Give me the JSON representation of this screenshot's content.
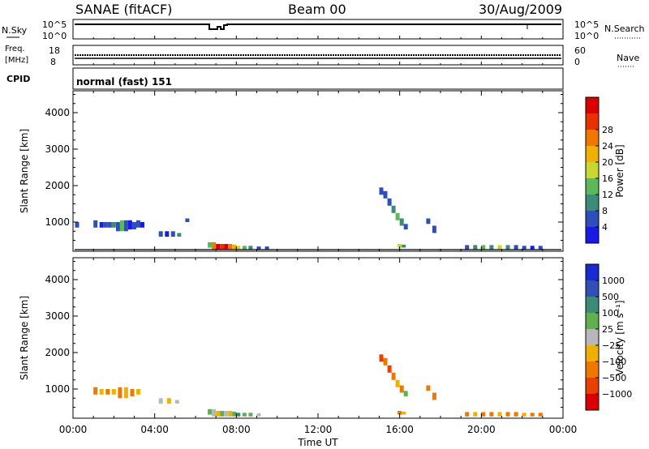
{
  "header": {
    "station": "SANAE (fitACF)",
    "beam": "Beam 00",
    "date": "30/Aug/2009"
  },
  "strips": {
    "nsky_label": "N.Sky",
    "nsky_ticks": [
      "10^5",
      "10^0"
    ],
    "nsearch_label": "N.Search",
    "nsearch_ticks": [
      "10^5",
      "10^0"
    ],
    "freq_label_1": "Freq.",
    "freq_label_2": "[MHz]",
    "freq_ticks": [
      "18",
      "8"
    ],
    "nave_label": "Nave",
    "nave_ticks": [
      "60",
      "0"
    ],
    "cpid_label": "CPID",
    "cpid_text": "normal (fast) 151"
  },
  "chart_data": [
    {
      "type": "heatmap",
      "name": "power",
      "ylabel": "Slant Range [km]",
      "xlabel": "",
      "yticks": [
        1000,
        2000,
        3000,
        4000
      ],
      "ylim": [
        200,
        4600
      ],
      "xlim": [
        0,
        24
      ],
      "colorbar": {
        "label": "Power [dB]",
        "ticks": [
          "4",
          "8",
          "12",
          "16",
          "20",
          "24",
          "28"
        ],
        "colors": [
          "#1a1ae6",
          "#2f4fb8",
          "#3e8a78",
          "#5cb858",
          "#c8d830",
          "#f0b000",
          "#f07800",
          "#e83000",
          "#d80000"
        ]
      },
      "cells": [
        {
          "t": 0.1,
          "r0": 850,
          "r1": 1000,
          "c": 1
        },
        {
          "t": 1.0,
          "r0": 850,
          "r1": 1050,
          "c": 1
        },
        {
          "t": 1.3,
          "r0": 850,
          "r1": 1000,
          "c": 0
        },
        {
          "t": 1.5,
          "r0": 850,
          "r1": 1000,
          "c": 1
        },
        {
          "t": 1.7,
          "r0": 850,
          "r1": 1000,
          "c": 1
        },
        {
          "t": 1.9,
          "r0": 850,
          "r1": 1000,
          "c": 2
        },
        {
          "t": 2.1,
          "r0": 750,
          "r1": 1000,
          "c": 1
        },
        {
          "t": 2.3,
          "r0": 750,
          "r1": 1050,
          "c": 3
        },
        {
          "t": 2.5,
          "r0": 750,
          "r1": 1050,
          "c": 1
        },
        {
          "t": 2.7,
          "r0": 800,
          "r1": 1050,
          "c": 0
        },
        {
          "t": 2.9,
          "r0": 800,
          "r1": 1000,
          "c": 1
        },
        {
          "t": 3.1,
          "r0": 850,
          "r1": 1050,
          "c": 1
        },
        {
          "t": 3.3,
          "r0": 850,
          "r1": 1000,
          "c": 0
        },
        {
          "t": 4.2,
          "r0": 600,
          "r1": 750,
          "c": 1
        },
        {
          "t": 4.5,
          "r0": 600,
          "r1": 750,
          "c": 0
        },
        {
          "t": 4.8,
          "r0": 600,
          "r1": 750,
          "c": 1
        },
        {
          "t": 5.1,
          "r0": 600,
          "r1": 700,
          "c": 2
        },
        {
          "t": 5.5,
          "r0": 1000,
          "r1": 1100,
          "c": 1
        },
        {
          "t": 6.6,
          "r0": 300,
          "r1": 450,
          "c": 3
        },
        {
          "t": 6.8,
          "r0": 250,
          "r1": 450,
          "c": 6
        },
        {
          "t": 7.0,
          "r0": 250,
          "r1": 400,
          "c": 8
        },
        {
          "t": 7.2,
          "r0": 250,
          "r1": 400,
          "c": 7
        },
        {
          "t": 7.4,
          "r0": 250,
          "r1": 400,
          "c": 8
        },
        {
          "t": 7.6,
          "r0": 250,
          "r1": 400,
          "c": 6
        },
        {
          "t": 7.8,
          "r0": 250,
          "r1": 380,
          "c": 5
        },
        {
          "t": 8.0,
          "r0": 250,
          "r1": 350,
          "c": 4
        },
        {
          "t": 8.3,
          "r0": 250,
          "r1": 350,
          "c": 3
        },
        {
          "t": 8.6,
          "r0": 250,
          "r1": 350,
          "c": 2
        },
        {
          "t": 9.0,
          "r0": 250,
          "r1": 330,
          "c": 1
        },
        {
          "t": 9.4,
          "r0": 250,
          "r1": 330,
          "c": 1
        },
        {
          "t": 15.0,
          "r0": 1750,
          "r1": 1950,
          "c": 1
        },
        {
          "t": 15.2,
          "r0": 1650,
          "r1": 1850,
          "c": 1
        },
        {
          "t": 15.4,
          "r0": 1450,
          "r1": 1650,
          "c": 1
        },
        {
          "t": 15.6,
          "r0": 1250,
          "r1": 1450,
          "c": 2
        },
        {
          "t": 15.8,
          "r0": 1050,
          "r1": 1250,
          "c": 3
        },
        {
          "t": 16.0,
          "r0": 900,
          "r1": 1100,
          "c": 2
        },
        {
          "t": 16.2,
          "r0": 800,
          "r1": 950,
          "c": 1
        },
        {
          "t": 15.9,
          "r0": 300,
          "r1": 400,
          "c": 4
        },
        {
          "t": 16.1,
          "r0": 300,
          "r1": 380,
          "c": 2
        },
        {
          "t": 17.3,
          "r0": 950,
          "r1": 1100,
          "c": 1
        },
        {
          "t": 17.6,
          "r0": 700,
          "r1": 900,
          "c": 1
        },
        {
          "t": 19.2,
          "r0": 250,
          "r1": 370,
          "c": 1
        },
        {
          "t": 19.6,
          "r0": 250,
          "r1": 370,
          "c": 2
        },
        {
          "t": 20.0,
          "r0": 250,
          "r1": 370,
          "c": 3
        },
        {
          "t": 20.4,
          "r0": 250,
          "r1": 370,
          "c": 2
        },
        {
          "t": 20.8,
          "r0": 250,
          "r1": 370,
          "c": 4
        },
        {
          "t": 21.2,
          "r0": 250,
          "r1": 370,
          "c": 2
        },
        {
          "t": 21.6,
          "r0": 250,
          "r1": 370,
          "c": 1
        },
        {
          "t": 22.0,
          "r0": 250,
          "r1": 350,
          "c": 1
        },
        {
          "t": 22.4,
          "r0": 250,
          "r1": 350,
          "c": 0
        },
        {
          "t": 22.8,
          "r0": 250,
          "r1": 350,
          "c": 1
        }
      ]
    },
    {
      "type": "heatmap",
      "name": "velocity",
      "ylabel": "Slant Range [km]",
      "xlabel": "Time UT",
      "yticks": [
        1000,
        2000,
        3000,
        4000
      ],
      "ylim": [
        200,
        4600
      ],
      "xlim": [
        0,
        24
      ],
      "xticks": [
        "00:00",
        "04:00",
        "08:00",
        "12:00",
        "16:00",
        "20:00",
        "00:00"
      ],
      "colorbar": {
        "label": "Velocity [m s⁻¹]",
        "ticks": [
          "1000",
          "500",
          "100",
          "25",
          "−25",
          "−100",
          "−500",
          "−1000"
        ],
        "colors": [
          "#1a2ad0",
          "#3050b8",
          "#3e8a78",
          "#60b050",
          "#b8b8b8",
          "#f0b000",
          "#f07800",
          "#e84000",
          "#d80000"
        ]
      },
      "cells": [
        {
          "t": 1.0,
          "r0": 850,
          "r1": 1050,
          "c": 6
        },
        {
          "t": 1.3,
          "r0": 850,
          "r1": 1000,
          "c": 5
        },
        {
          "t": 1.6,
          "r0": 850,
          "r1": 1000,
          "c": 6
        },
        {
          "t": 1.9,
          "r0": 850,
          "r1": 1000,
          "c": 5
        },
        {
          "t": 2.2,
          "r0": 750,
          "r1": 1050,
          "c": 6
        },
        {
          "t": 2.5,
          "r0": 750,
          "r1": 1050,
          "c": 5
        },
        {
          "t": 2.8,
          "r0": 800,
          "r1": 1000,
          "c": 6
        },
        {
          "t": 3.1,
          "r0": 850,
          "r1": 1000,
          "c": 5
        },
        {
          "t": 4.2,
          "r0": 600,
          "r1": 750,
          "c": 4
        },
        {
          "t": 4.6,
          "r0": 600,
          "r1": 750,
          "c": 5
        },
        {
          "t": 5.0,
          "r0": 600,
          "r1": 700,
          "c": 4
        },
        {
          "t": 6.6,
          "r0": 300,
          "r1": 450,
          "c": 3
        },
        {
          "t": 6.8,
          "r0": 250,
          "r1": 450,
          "c": 4
        },
        {
          "t": 7.0,
          "r0": 250,
          "r1": 400,
          "c": 5
        },
        {
          "t": 7.2,
          "r0": 250,
          "r1": 400,
          "c": 3
        },
        {
          "t": 7.4,
          "r0": 250,
          "r1": 400,
          "c": 4
        },
        {
          "t": 7.6,
          "r0": 250,
          "r1": 400,
          "c": 5
        },
        {
          "t": 7.8,
          "r0": 250,
          "r1": 380,
          "c": 3
        },
        {
          "t": 8.0,
          "r0": 250,
          "r1": 350,
          "c": 2
        },
        {
          "t": 8.3,
          "r0": 250,
          "r1": 350,
          "c": 3
        },
        {
          "t": 8.6,
          "r0": 250,
          "r1": 350,
          "c": 3
        },
        {
          "t": 9.0,
          "r0": 250,
          "r1": 330,
          "c": 4
        },
        {
          "t": 15.0,
          "r0": 1750,
          "r1": 1950,
          "c": 7
        },
        {
          "t": 15.2,
          "r0": 1650,
          "r1": 1850,
          "c": 6
        },
        {
          "t": 15.4,
          "r0": 1450,
          "r1": 1650,
          "c": 7
        },
        {
          "t": 15.6,
          "r0": 1250,
          "r1": 1450,
          "c": 6
        },
        {
          "t": 15.8,
          "r0": 1050,
          "r1": 1250,
          "c": 5
        },
        {
          "t": 16.0,
          "r0": 900,
          "r1": 1100,
          "c": 6
        },
        {
          "t": 16.2,
          "r0": 800,
          "r1": 950,
          "c": 3
        },
        {
          "t": 15.9,
          "r0": 300,
          "r1": 400,
          "c": 6
        },
        {
          "t": 16.1,
          "r0": 300,
          "r1": 380,
          "c": 5
        },
        {
          "t": 17.3,
          "r0": 950,
          "r1": 1100,
          "c": 6
        },
        {
          "t": 17.6,
          "r0": 700,
          "r1": 900,
          "c": 6
        },
        {
          "t": 19.2,
          "r0": 250,
          "r1": 370,
          "c": 6
        },
        {
          "t": 19.6,
          "r0": 250,
          "r1": 370,
          "c": 5
        },
        {
          "t": 20.0,
          "r0": 250,
          "r1": 370,
          "c": 6
        },
        {
          "t": 20.4,
          "r0": 250,
          "r1": 370,
          "c": 6
        },
        {
          "t": 20.8,
          "r0": 250,
          "r1": 370,
          "c": 5
        },
        {
          "t": 21.2,
          "r0": 250,
          "r1": 370,
          "c": 6
        },
        {
          "t": 21.6,
          "r0": 250,
          "r1": 370,
          "c": 6
        },
        {
          "t": 22.0,
          "r0": 250,
          "r1": 350,
          "c": 5
        },
        {
          "t": 22.4,
          "r0": 250,
          "r1": 350,
          "c": 6
        },
        {
          "t": 22.8,
          "r0": 250,
          "r1": 350,
          "c": 6
        }
      ]
    }
  ]
}
